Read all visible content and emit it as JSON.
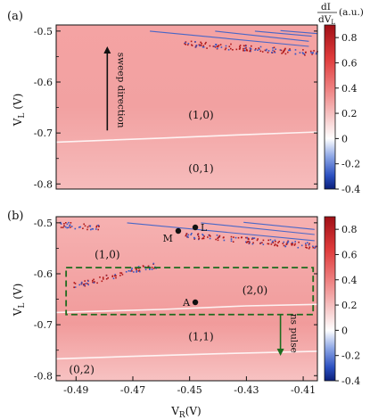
{
  "chart_data": [
    {
      "type": "heatmap",
      "panel_label": "(a)",
      "xlim": [
        -0.497,
        -0.405
      ],
      "ylim": [
        -0.81,
        -0.488
      ],
      "ylabel_main": "V",
      "ylabel_sub": "L",
      "ylabel_unit": " (V)",
      "yticks": [
        -0.5,
        -0.6,
        -0.7,
        -0.8
      ],
      "yticklabels": [
        "-0.5",
        "-0.6",
        "-0.7",
        "-0.8"
      ],
      "background_value": 0.3,
      "charge_transitions": [
        {
          "points": [
            [
              -0.464,
              -0.5
            ],
            [
              -0.408,
              -0.53
            ]
          ]
        },
        {
          "points": [
            [
              -0.441,
              -0.5
            ],
            [
              -0.408,
              -0.52
            ]
          ]
        },
        {
          "points": [
            [
              -0.427,
              -0.5
            ],
            [
              -0.407,
              -0.51
            ]
          ]
        },
        {
          "points": [
            [
              -0.418,
              -0.499
            ],
            [
              -0.405,
              -0.505
            ]
          ]
        },
        {
          "points": [
            [
              -0.497,
              -0.718
            ],
            [
              -0.46,
              -0.71
            ],
            [
              -0.43,
              -0.703
            ],
            [
              -0.405,
              -0.698
            ]
          ],
          "color": "#ffffff"
        }
      ],
      "noisy_transition": {
        "x_start": -0.452,
        "x_end": -0.405,
        "y_start": -0.523,
        "y_end": -0.543
      },
      "region_labels": [
        {
          "text": "(1,0)",
          "x": -0.446,
          "y": -0.672
        },
        {
          "text": "(0,1)",
          "x": -0.446,
          "y": -0.777
        }
      ],
      "annotation_arrow": {
        "label": "sweep direction",
        "x": -0.479,
        "y_from": -0.695,
        "y_to": -0.537
      }
    },
    {
      "type": "heatmap",
      "panel_label": "(b)",
      "xlim": [
        -0.497,
        -0.405
      ],
      "ylim": [
        -0.81,
        -0.488
      ],
      "ylabel_main": "V",
      "ylabel_sub": "L",
      "ylabel_unit": " (V)",
      "xlabel_main": "V",
      "xlabel_sub": "R",
      "xlabel_unit": "(V)",
      "xticks": [
        -0.49,
        -0.47,
        -0.45,
        -0.43,
        -0.41
      ],
      "xticklabels": [
        "-0.49",
        "-0.47",
        "-0.45",
        "-0.43",
        "-0.41"
      ],
      "yticks": [
        -0.5,
        -0.6,
        -0.7,
        -0.8
      ],
      "yticklabels": [
        "-0.5",
        "-0.6",
        "-0.7",
        "-0.8"
      ],
      "background_value": 0.3,
      "charge_transitions": [
        {
          "points": [
            [
              -0.472,
              -0.5
            ],
            [
              -0.406,
              -0.535
            ]
          ]
        },
        {
          "points": [
            [
              -0.446,
              -0.5
            ],
            [
              -0.406,
              -0.523
            ]
          ]
        },
        {
          "points": [
            [
              -0.431,
              -0.499
            ],
            [
              -0.406,
              -0.513
            ]
          ]
        },
        {
          "points": [
            [
              -0.497,
              -0.676
            ],
            [
              -0.46,
              -0.67
            ],
            [
              -0.43,
              -0.663
            ],
            [
              -0.405,
              -0.66
            ]
          ],
          "color": "#ffffff"
        },
        {
          "points": [
            [
              -0.497,
              -0.767
            ],
            [
              -0.47,
              -0.762
            ],
            [
              -0.44,
              -0.757
            ],
            [
              -0.405,
              -0.752
            ]
          ],
          "color": "#ffffff"
        }
      ],
      "noisy_transitions": [
        {
          "x_start": -0.491,
          "x_end": -0.462,
          "y_start": -0.622,
          "y_end": -0.582
        },
        {
          "x_start": -0.452,
          "x_end": -0.405,
          "y_start": -0.523,
          "y_end": -0.545
        },
        {
          "x_start": -0.496,
          "x_end": -0.482,
          "y_start": -0.502,
          "y_end": -0.508
        }
      ],
      "pulse_window": {
        "x0": -0.4935,
        "x1": -0.4065,
        "y0": -0.588,
        "y1": -0.68
      },
      "points": [
        {
          "label": "M",
          "x": -0.454,
          "y": -0.516
        },
        {
          "label": "L",
          "x": -0.448,
          "y": -0.509
        },
        {
          "label": "A",
          "x": -0.448,
          "y": -0.656
        }
      ],
      "region_labels": [
        {
          "text": "(1,0)",
          "x": -0.479,
          "y": -0.569
        },
        {
          "text": "(2,0)",
          "x": -0.427,
          "y": -0.639
        },
        {
          "text": "(1,1)",
          "x": -0.446,
          "y": -0.73
        },
        {
          "text": "(0,2)",
          "x": -0.488,
          "y": -0.795
        }
      ],
      "annotation_arrow": {
        "label": "ns pulse",
        "x": -0.418,
        "y_from": -0.68,
        "y_to": -0.754
      }
    }
  ],
  "colorbar": {
    "title_num": "dI",
    "title_den": "dV",
    "title_den_sub": "L",
    "unit": "(a.u.)",
    "ticks": [
      0.8,
      0.6,
      0.4,
      0.2,
      0,
      -0.2,
      -0.4
    ],
    "ticklabels": [
      "0.8",
      "0.6",
      "0.4",
      "0.2",
      "0",
      "-0.2",
      "-0.4"
    ],
    "range": [
      -0.4,
      0.9
    ],
    "colors": {
      "low": "#1a3da8",
      "mid": "#ffffff",
      "high": "#a8141a"
    }
  }
}
